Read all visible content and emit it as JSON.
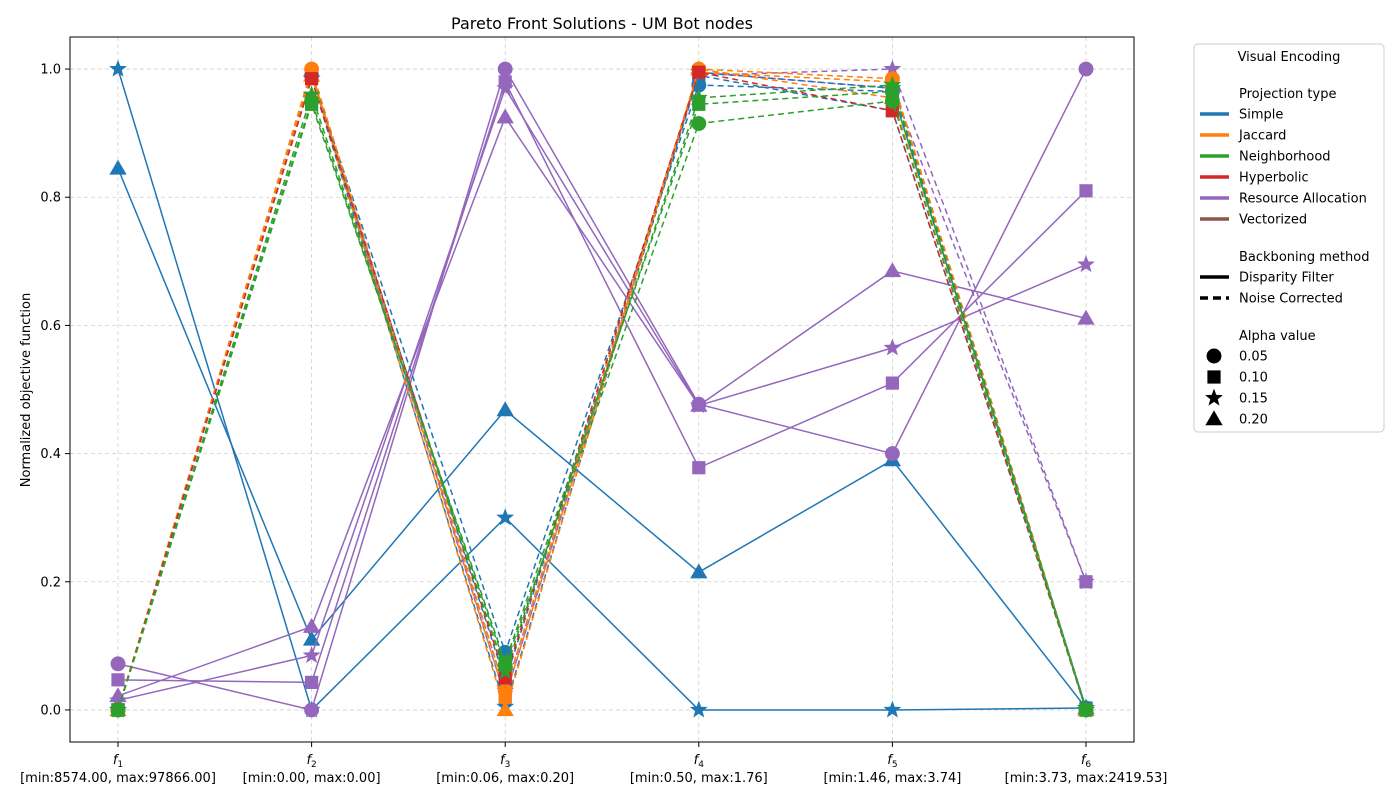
{
  "chart_data": {
    "type": "line",
    "title": "Pareto Front Solutions - UM Bot nodes",
    "ylabel": "Normalized objective function",
    "xlabel": "",
    "ylim": [
      -0.05,
      1.05
    ],
    "yticks": [
      "0.0",
      "0.2",
      "0.4",
      "0.6",
      "0.8",
      "1.0"
    ],
    "grid": true,
    "legend_position": "outside-right",
    "axes": [
      {
        "name": "f",
        "sub": "1",
        "range": "[min:8574.00, max:97866.00]"
      },
      {
        "name": "f",
        "sub": "2",
        "range": "[min:0.00, max:0.00]"
      },
      {
        "name": "f",
        "sub": "3",
        "range": "[min:0.06, max:0.20]"
      },
      {
        "name": "f",
        "sub": "4",
        "range": "[min:0.50, max:1.76]"
      },
      {
        "name": "f",
        "sub": "5",
        "range": "[min:1.46, max:3.74]"
      },
      {
        "name": "f",
        "sub": "6",
        "range": "[min:3.73, max:2419.53]"
      }
    ],
    "legend": {
      "title": "Visual Encoding",
      "projection_title": "Projection type",
      "projections": [
        {
          "label": "Simple",
          "color": "#1f77b4"
        },
        {
          "label": "Jaccard",
          "color": "#ff7f0e"
        },
        {
          "label": "Neighborhood",
          "color": "#2ca02c"
        },
        {
          "label": "Hyperbolic",
          "color": "#d62728"
        },
        {
          "label": "Resource Allocation",
          "color": "#9467bd"
        },
        {
          "label": "Vectorized",
          "color": "#8c564b"
        }
      ],
      "backbone_title": "Backboning method",
      "backbones": [
        {
          "label": "Disparity Filter",
          "style": "solid"
        },
        {
          "label": "Noise Corrected",
          "style": "dashed"
        }
      ],
      "alpha_title": "Alpha value",
      "alphas": [
        {
          "label": "0.05",
          "marker": "circle"
        },
        {
          "label": "0.10",
          "marker": "square"
        },
        {
          "label": "0.15",
          "marker": "star"
        },
        {
          "label": "0.20",
          "marker": "triangle"
        }
      ]
    },
    "series": [
      {
        "projection": "Simple",
        "backbone": "Disparity Filter",
        "alpha": "0.15",
        "values": [
          1.0,
          0.0,
          0.3,
          0.0,
          0.0,
          0.003
        ]
      },
      {
        "projection": "Simple",
        "backbone": "Disparity Filter",
        "alpha": "0.20",
        "values": [
          0.845,
          0.11,
          0.468,
          0.215,
          0.39,
          0.003
        ]
      },
      {
        "projection": "Resource Allocation",
        "backbone": "Disparity Filter",
        "alpha": "0.05",
        "values": [
          0.072,
          0.0,
          1.0,
          0.477,
          0.4,
          1.0
        ]
      },
      {
        "projection": "Resource Allocation",
        "backbone": "Disparity Filter",
        "alpha": "0.10",
        "values": [
          0.047,
          0.043,
          0.98,
          0.378,
          0.51,
          0.81
        ]
      },
      {
        "projection": "Resource Allocation",
        "backbone": "Disparity Filter",
        "alpha": "0.15",
        "values": [
          0.015,
          0.085,
          0.97,
          0.475,
          0.565,
          0.695
        ]
      },
      {
        "projection": "Resource Allocation",
        "backbone": "Disparity Filter",
        "alpha": "0.20",
        "values": [
          0.022,
          0.13,
          0.925,
          0.475,
          0.685,
          0.611
        ]
      },
      {
        "projection": "Resource Allocation",
        "backbone": "Noise Corrected",
        "alpha": "0.10",
        "values": [
          0.0,
          0.99,
          0.02,
          0.995,
          0.97,
          0.2
        ]
      },
      {
        "projection": "Resource Allocation",
        "backbone": "Noise Corrected",
        "alpha": "0.15",
        "values": [
          0.0,
          0.985,
          0.03,
          0.99,
          1.0,
          0.2
        ]
      },
      {
        "projection": "Simple",
        "backbone": "Noise Corrected",
        "alpha": "0.05",
        "values": [
          0.0,
          0.99,
          0.09,
          0.975,
          0.965,
          0.003
        ]
      },
      {
        "projection": "Simple",
        "backbone": "Noise Corrected",
        "alpha": "0.10",
        "values": [
          0.0,
          0.99,
          0.045,
          0.99,
          0.935,
          0.003
        ]
      },
      {
        "projection": "Simple",
        "backbone": "Noise Corrected",
        "alpha": "0.15",
        "values": [
          0.0,
          0.985,
          0.005,
          0.995,
          0.97,
          0.003
        ]
      },
      {
        "projection": "Jaccard",
        "backbone": "Noise Corrected",
        "alpha": "0.05",
        "values": [
          0.0,
          1.0,
          0.03,
          1.0,
          0.985,
          0.0
        ]
      },
      {
        "projection": "Jaccard",
        "backbone": "Noise Corrected",
        "alpha": "0.10",
        "values": [
          0.0,
          0.995,
          0.02,
          0.995,
          0.98,
          0.0
        ]
      },
      {
        "projection": "Jaccard",
        "backbone": "Noise Corrected",
        "alpha": "0.20",
        "values": [
          0.0,
          0.99,
          0.0,
          1.0,
          0.955,
          0.0
        ]
      },
      {
        "projection": "Hyperbolic",
        "backbone": "Noise Corrected",
        "alpha": "0.10",
        "values": [
          0.0,
          0.985,
          0.05,
          0.995,
          0.935,
          0.0
        ]
      },
      {
        "projection": "Neighborhood",
        "backbone": "Noise Corrected",
        "alpha": "0.05",
        "values": [
          0.0,
          0.95,
          0.07,
          0.915,
          0.95,
          0.0
        ]
      },
      {
        "projection": "Neighborhood",
        "backbone": "Noise Corrected",
        "alpha": "0.10",
        "values": [
          0.0,
          0.945,
          0.075,
          0.945,
          0.965,
          0.0
        ]
      },
      {
        "projection": "Neighborhood",
        "backbone": "Noise Corrected",
        "alpha": "0.15",
        "values": [
          0.0,
          0.96,
          0.06,
          0.955,
          0.975,
          0.0
        ]
      }
    ]
  }
}
